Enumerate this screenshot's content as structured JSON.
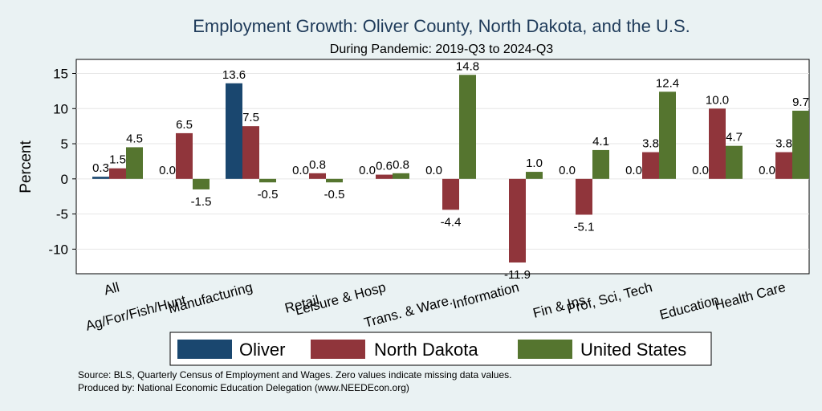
{
  "chart_data": {
    "type": "bar",
    "title": "Employment Growth: Oliver County, North Dakota, and the U.S.",
    "subtitle": "During Pandemic: 2019-Q3 to 2024-Q3",
    "xlabel": "",
    "ylabel": "Percent",
    "ylim": [
      -13.5,
      17
    ],
    "yticks": [
      15,
      10,
      5,
      0,
      -5,
      -10
    ],
    "grid": true,
    "legend_position": "bottom",
    "categories": [
      "All",
      "Ag/For/Fish/Hunt",
      "Manufacturing",
      "Retail",
      "Leisure & Hosp",
      "Trans. & Ware.",
      "Information",
      "Fin & Ins",
      "Prof, Sci, Tech",
      "Education",
      "Health Care"
    ],
    "series": [
      {
        "name": "Oliver",
        "color": "#1a476f",
        "values": [
          0.3,
          0.0,
          13.6,
          0.0,
          0.0,
          0.0,
          null,
          0.0,
          0.0,
          0.0,
          0.0
        ],
        "labels": [
          "0.3",
          "0.0",
          "13.6",
          "0.0",
          "0.0",
          "0.0",
          "",
          "0.0",
          "0.0",
          "0.0",
          "0.0"
        ]
      },
      {
        "name": "North Dakota",
        "color": "#90353b",
        "values": [
          1.5,
          6.5,
          7.5,
          0.8,
          0.6,
          -4.4,
          -11.9,
          -5.1,
          3.8,
          10.0,
          3.8
        ],
        "labels": [
          "1.5",
          "6.5",
          "7.5",
          "0.8",
          "0.6",
          "-4.4",
          "-11.9",
          "-5.1",
          "3.8",
          "10.0",
          "3.8"
        ]
      },
      {
        "name": "United States",
        "color": "#55752f",
        "values": [
          4.5,
          -1.5,
          -0.5,
          -0.5,
          0.8,
          14.8,
          1.0,
          4.1,
          12.4,
          4.7,
          9.7
        ],
        "labels": [
          "4.5",
          "-1.5",
          "-0.5",
          "-0.5",
          "0.8",
          "14.8",
          "1.0",
          "4.1",
          "12.4",
          "4.7",
          "9.7"
        ]
      }
    ]
  },
  "footnotes": {
    "source": "Source: BLS, Quarterly Census of Employment and Wages. Zero values indicate missing data values.",
    "produced": "Produced by: National Economic Education Delegation (www.NEEDEcon.org)"
  }
}
